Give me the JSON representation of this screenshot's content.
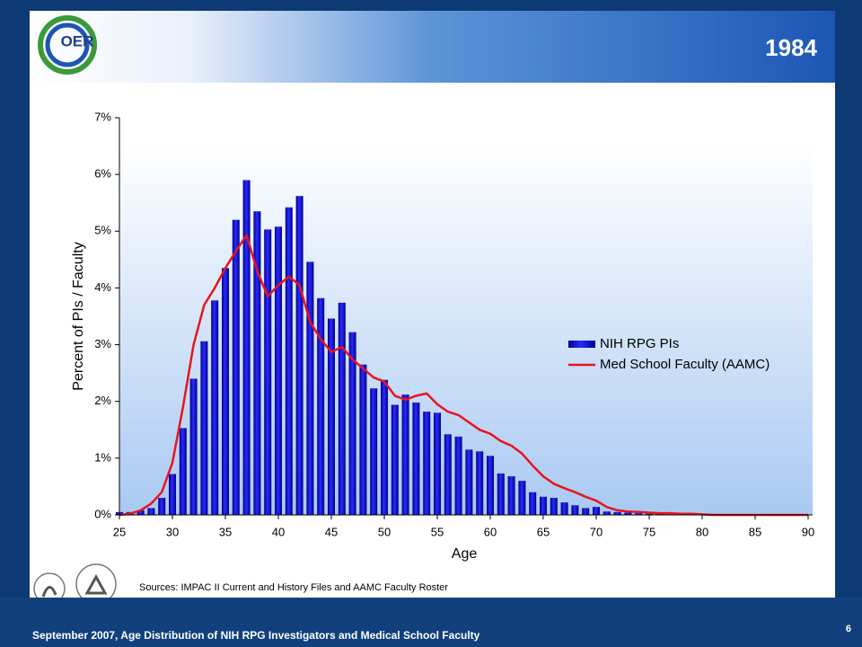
{
  "logo_text": "OER",
  "footer": {
    "text": "September 2007, Age Distribution of NIH RPG Investigators and Medical School Faculty",
    "page": "6"
  },
  "chart_data": {
    "type": "bar",
    "title": "1984",
    "x_label": "Age",
    "y_label": "Percent of PIs / Faculty",
    "source": "Sources:  IMPAC II Current and History Files and AAMC Faculty Roster",
    "x": [
      25,
      26,
      27,
      28,
      29,
      30,
      31,
      32,
      33,
      34,
      35,
      36,
      37,
      38,
      39,
      40,
      41,
      42,
      43,
      44,
      45,
      46,
      47,
      48,
      49,
      50,
      51,
      52,
      53,
      54,
      55,
      56,
      57,
      58,
      59,
      60,
      61,
      62,
      63,
      64,
      65,
      66,
      67,
      68,
      69,
      70,
      71,
      72,
      73,
      74,
      75,
      76,
      77,
      78,
      79,
      80,
      81,
      82,
      83,
      84,
      85,
      86,
      87,
      88,
      89,
      90
    ],
    "series": [
      {
        "name": "NIH RPG PIs",
        "type": "bar",
        "color": "#1414f0",
        "values": [
          0.05,
          0.05,
          0.08,
          0.12,
          0.3,
          0.72,
          1.53,
          2.4,
          3.06,
          3.78,
          4.35,
          5.2,
          5.9,
          5.35,
          5.03,
          5.08,
          5.42,
          5.62,
          4.46,
          3.82,
          3.46,
          3.74,
          3.22,
          2.65,
          2.23,
          2.38,
          1.94,
          2.12,
          1.98,
          1.82,
          1.8,
          1.42,
          1.38,
          1.15,
          1.12,
          1.04,
          0.73,
          0.68,
          0.6,
          0.4,
          0.32,
          0.3,
          0.22,
          0.17,
          0.12,
          0.14,
          0.06,
          0.05,
          0.04,
          0.03,
          0.02,
          0.02,
          0.01,
          0.01,
          0.01,
          0,
          0,
          0,
          0,
          0,
          0,
          0,
          0,
          0,
          0,
          0
        ]
      },
      {
        "name": "Med School Faculty (AAMC)",
        "type": "line",
        "color": "#e8141e",
        "values": [
          0,
          0.02,
          0.08,
          0.2,
          0.4,
          0.92,
          1.9,
          3.0,
          3.7,
          4.0,
          4.35,
          4.65,
          4.93,
          4.3,
          3.85,
          4.05,
          4.2,
          4.05,
          3.4,
          3.1,
          2.87,
          2.96,
          2.74,
          2.58,
          2.42,
          2.35,
          2.1,
          2.03,
          2.1,
          2.14,
          1.95,
          1.82,
          1.76,
          1.63,
          1.5,
          1.43,
          1.3,
          1.22,
          1.08,
          0.87,
          0.68,
          0.55,
          0.47,
          0.4,
          0.32,
          0.25,
          0.14,
          0.08,
          0.06,
          0.05,
          0.04,
          0.03,
          0.03,
          0.02,
          0.02,
          0.01,
          0,
          0,
          0,
          0,
          0,
          0,
          0,
          0,
          0,
          0
        ]
      }
    ],
    "xlim": [
      25,
      90
    ],
    "xticks": [
      25,
      30,
      35,
      40,
      45,
      50,
      55,
      60,
      65,
      70,
      75,
      80,
      85,
      90
    ],
    "ylim": [
      0,
      7
    ],
    "yticks": [
      {
        "value": 0,
        "label": "0%"
      },
      {
        "value": 1,
        "label": "1%"
      },
      {
        "value": 2,
        "label": "2%"
      },
      {
        "value": 3,
        "label": "3%"
      },
      {
        "value": 4,
        "label": "4%"
      },
      {
        "value": 5,
        "label": "5%"
      },
      {
        "value": 6,
        "label": "6%"
      },
      {
        "value": 7,
        "label": "7%"
      }
    ],
    "legend": "right"
  }
}
